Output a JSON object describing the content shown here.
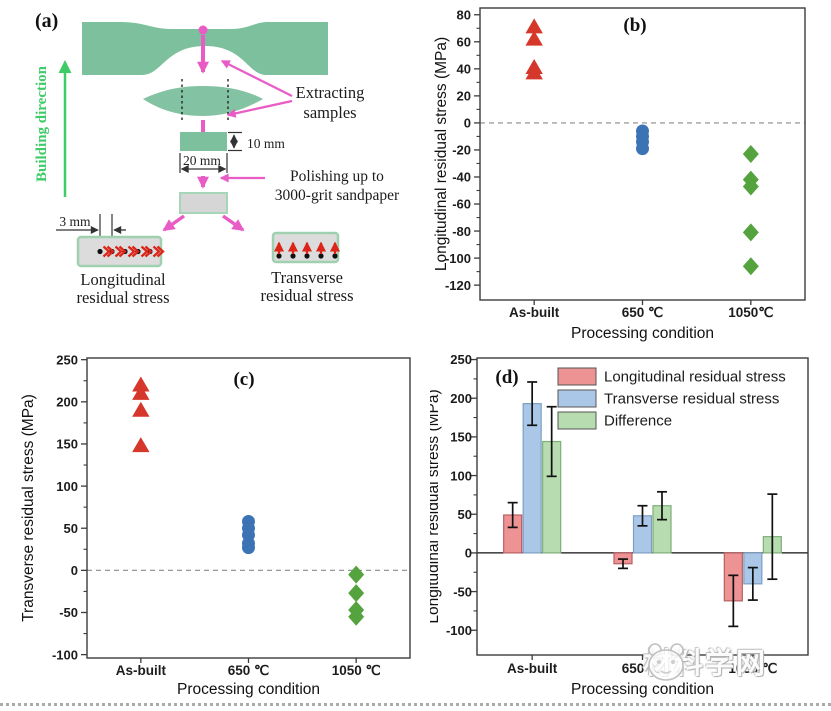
{
  "figure": {
    "panel_a": {
      "label": "(a)",
      "building_direction": "Building direction",
      "extracting": [
        "Extracting",
        "samples"
      ],
      "polishing": [
        "Polishing up to",
        "3000-grit sandpaper"
      ],
      "dims": {
        "d10": "10 mm",
        "d20": "20 mm",
        "d3": "3 mm"
      },
      "longitudinal": [
        "Longitudinal",
        "residual stress"
      ],
      "transverse": [
        "Transverse",
        "residual stress"
      ],
      "colors": {
        "specimen_green": "#7cc09e",
        "accent_magenta": "#ea5cc5",
        "building_green": "#3ecb68",
        "stress_arrow_red": "#dd2418",
        "polished_gray": "#d6d6d6"
      }
    }
  },
  "chart_data": [
    {
      "panel": "(b)",
      "type": "scatter",
      "xlabel": "Processing condition",
      "ylabel": "Longitudinal residual stress (MPa)",
      "categories": [
        "As-built",
        "650 ℃",
        "1050℃"
      ],
      "ylim": [
        -131,
        85
      ],
      "yticks": [
        80,
        60,
        40,
        20,
        0,
        -20,
        -40,
        -60,
        -80,
        -100,
        -120
      ],
      "zero_line": "dashed",
      "grid": false,
      "series": [
        {
          "name": "As-built",
          "marker": "triangle",
          "color": "#d6372b",
          "category": 0,
          "values": [
            71,
            62,
            41,
            37
          ]
        },
        {
          "name": "650 ℃",
          "marker": "circle",
          "color": "#3c73b5",
          "category": 1,
          "values": [
            -6,
            -10,
            -14,
            -19
          ]
        },
        {
          "name": "1050℃",
          "marker": "diamond",
          "color": "#55a33e",
          "category": 2,
          "values": [
            -23,
            -42,
            -47,
            -81,
            -106
          ]
        }
      ]
    },
    {
      "panel": "(c)",
      "type": "scatter",
      "xlabel": "Processing condition",
      "ylabel": "Transverse residual stress (MPa)",
      "categories": [
        "As-built",
        "650 ℃",
        "1050 ℃"
      ],
      "ylim": [
        -104,
        252
      ],
      "yticks": [
        250,
        200,
        150,
        100,
        50,
        0,
        -50,
        -100
      ],
      "zero_line": "dashed",
      "grid": false,
      "series": [
        {
          "name": "As-built",
          "marker": "triangle",
          "color": "#d6372b",
          "category": 0,
          "values": [
            220,
            210,
            190,
            148
          ]
        },
        {
          "name": "650 ℃",
          "marker": "circle",
          "color": "#3c73b5",
          "category": 1,
          "values": [
            58,
            50,
            42,
            32,
            27
          ]
        },
        {
          "name": "1050 ℃",
          "marker": "diamond",
          "color": "#55a33e",
          "category": 2,
          "values": [
            -5,
            -27,
            -47,
            -55
          ]
        }
      ]
    },
    {
      "panel": "(d)",
      "type": "bar",
      "xlabel": "Processing condition",
      "ylabel": "Longitudinal residual stress (MPa)",
      "categories": [
        "As-built",
        "650 ℃",
        "1050 ℃"
      ],
      "ylim": [
        -132,
        252
      ],
      "yticks": [
        250,
        200,
        150,
        100,
        50,
        0,
        -50,
        -100
      ],
      "zero_line": "solid",
      "grid": false,
      "legend_position": "upper-left-inside",
      "series": [
        {
          "name": "Longitudinal residual stress",
          "fill": "#ed9394",
          "stroke": "#b95f62",
          "values": [
            49,
            -14,
            -62
          ],
          "errors": [
            16,
            6,
            33
          ]
        },
        {
          "name": "Transverse residual stress",
          "fill": "#aac7e7",
          "stroke": "#7d9fc5",
          "values": [
            193,
            48,
            -40
          ],
          "errors": [
            28,
            13,
            21
          ]
        },
        {
          "name": "Difference",
          "fill": "#b7dcb0",
          "stroke": "#7fae79",
          "values": [
            144,
            61,
            21
          ],
          "errors": [
            45,
            18,
            55
          ]
        }
      ]
    }
  ],
  "watermark": {
    "text": "材料学网"
  }
}
